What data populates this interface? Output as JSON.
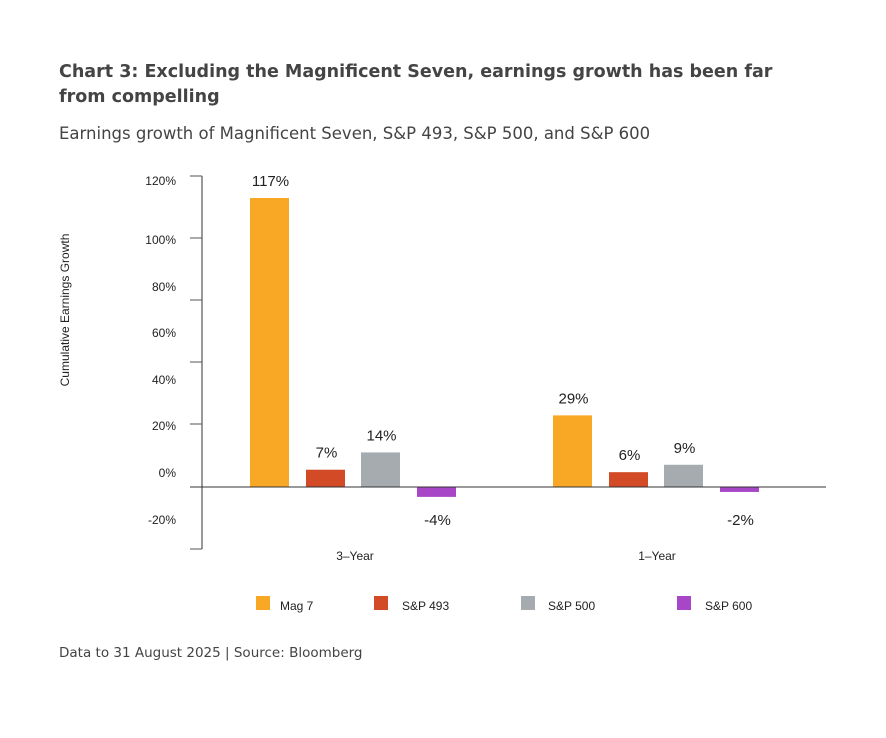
{
  "title": "Chart 3: Excluding the Magnificent Seven, earnings growth has been far from compelling",
  "subtitle": "Earnings growth of Magnificent Seven, S&P 493, S&P 500, and S&P 600",
  "footer": "Data to 31 August 2025 |  Source: Bloomberg",
  "chart_data": {
    "type": "bar",
    "title": "Chart 3: Excluding the Magnificent Seven, earnings growth has been far from compelling",
    "subtitle": "Earnings growth of Magnificent Seven, S&P 493, S&P 500, and S&P 600",
    "xlabel": "",
    "ylabel": "Cumulative Earnings Growth",
    "categories": [
      "3–Year",
      "1–Year"
    ],
    "y_ticks": [
      "120%",
      "100%",
      "80%",
      "60%",
      "40%",
      "20%",
      "0%",
      "-20%"
    ],
    "ylim": [
      -20,
      120
    ],
    "grid": false,
    "legend_position": "bottom",
    "series": [
      {
        "name": "Mag 7",
        "color": "#F9A825",
        "values": [
          117,
          29
        ],
        "labels": [
          "117%",
          "29%"
        ]
      },
      {
        "name": "S&P 493",
        "color": "#D24A26",
        "values": [
          7,
          6
        ],
        "labels": [
          "7%",
          "6%"
        ]
      },
      {
        "name": "S&P 500",
        "color": "#A5ABAF",
        "values": [
          14,
          9
        ],
        "labels": [
          "14%",
          "9%"
        ]
      },
      {
        "name": "S&P 600",
        "color": "#A746C6",
        "values": [
          -4,
          -2
        ],
        "labels": [
          "-4%",
          "-2%"
        ]
      }
    ]
  }
}
